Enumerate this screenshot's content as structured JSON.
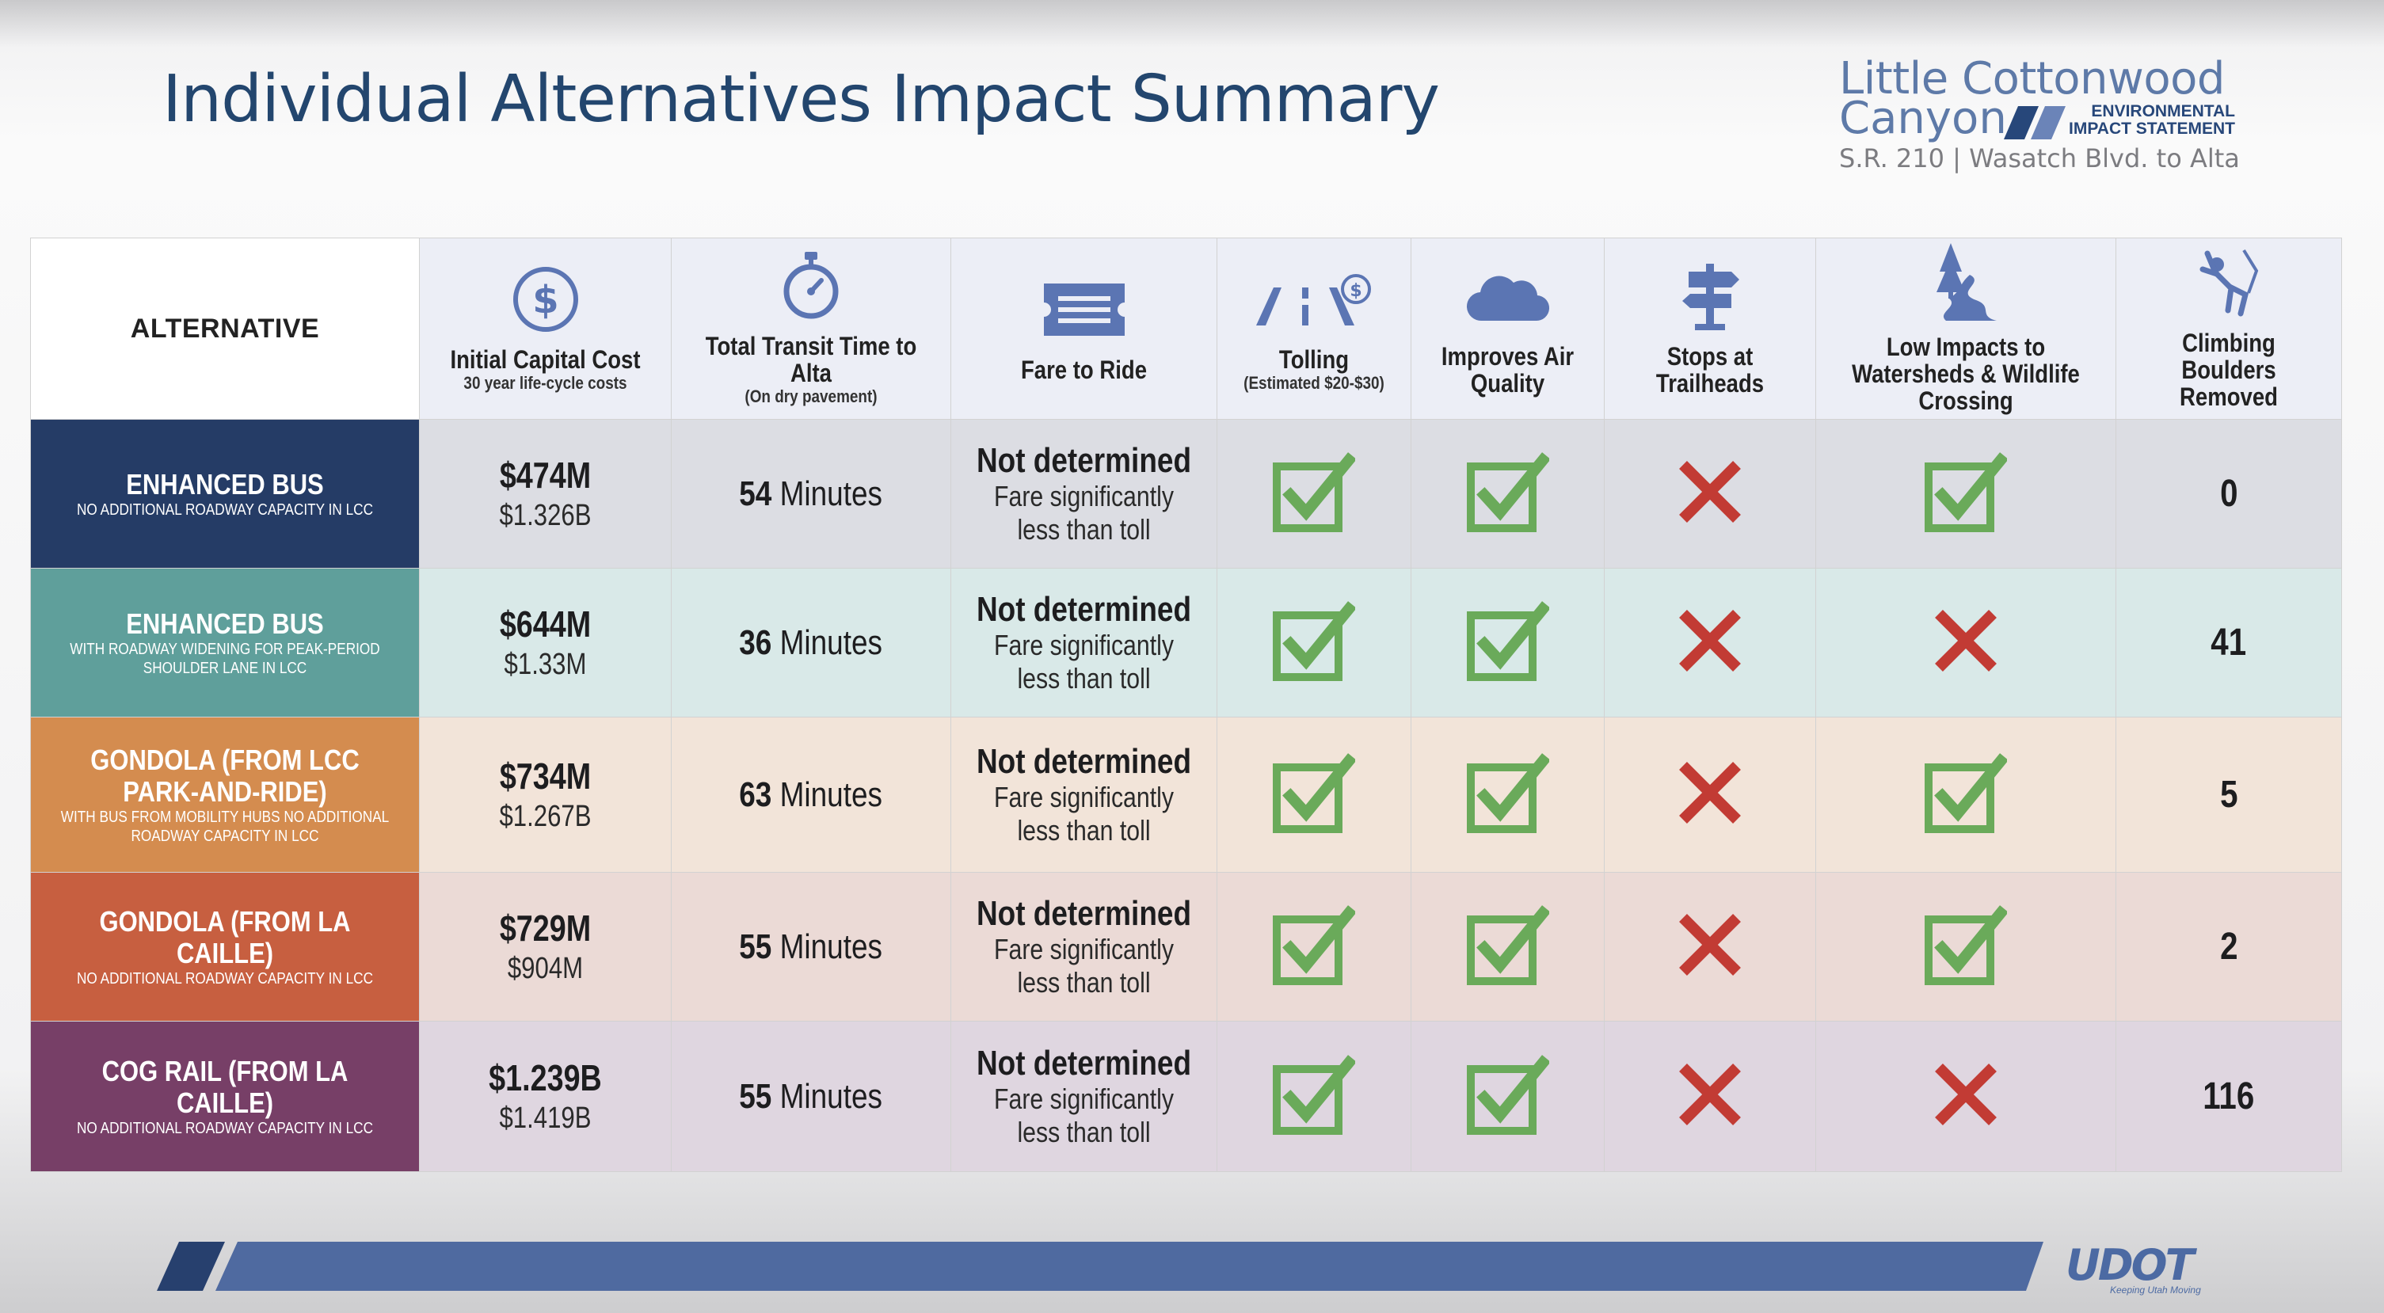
{
  "header": {
    "title": "Individual Alternatives Impact Summary",
    "logo": {
      "line1": "Little Cottonwood",
      "line2": "Canyon",
      "eis_line1": "ENVIRONMENTAL",
      "eis_line2": "IMPACT STATEMENT",
      "line3": "S.R. 210 | Wasatch Blvd. to Alta"
    }
  },
  "colors": {
    "title": "#23466e",
    "header_bg": "#eceef6",
    "icon_blue": "#5b75b3",
    "check_green": "#6aaa5a",
    "cross_red": "#c23b34",
    "band_blue": "#4f6aa0",
    "band_dark": "#27406e"
  },
  "table": {
    "alternative_header": "ALTERNATIVE",
    "columns": [
      {
        "title": "Initial Capital Cost",
        "subtitle": "30 year life-cycle costs",
        "icon": "dollar-icon"
      },
      {
        "title": "Total Transit Time to Alta",
        "subtitle": "(On dry pavement)",
        "icon": "stopwatch-icon"
      },
      {
        "title": "Fare to Ride",
        "subtitle": "",
        "icon": "ticket-icon"
      },
      {
        "title": "Tolling",
        "subtitle": "(Estimated $20-$30)",
        "icon": "toll-road-icon"
      },
      {
        "title": "Improves Air Quality",
        "subtitle": "",
        "icon": "cloud-icon"
      },
      {
        "title": "Stops at Trailheads",
        "subtitle": "",
        "icon": "trail-sign-icon"
      },
      {
        "title": "Low Impacts to Watersheds & Wildlife Crossing",
        "subtitle": "",
        "icon": "mountain-stream-icon"
      },
      {
        "title": "Climbing Boulders Removed",
        "subtitle": "",
        "icon": "climber-icon"
      }
    ],
    "minutes_label": "Minutes",
    "rows": [
      {
        "name": "ENHANCED BUS",
        "note": "NO ADDITIONAL ROADWAY CAPACITY IN LCC",
        "color": "#253c66",
        "cost": "$474M",
        "lifecycle": "$1.326B",
        "transit_min": "54",
        "fare_main": "Not determined",
        "fare_sub": "Fare significantly less than toll",
        "tolling": "check",
        "air": "check",
        "trailheads": "cross",
        "watershed": "check",
        "boulders": "0",
        "bg": "#dcdde3"
      },
      {
        "name": "ENHANCED BUS",
        "note": "WITH ROADWAY WIDENING FOR PEAK-PERIOD SHOULDER LANE IN LCC",
        "color": "#5f9f9b",
        "cost": "$644M",
        "lifecycle": "$1.33M",
        "transit_min": "36",
        "fare_main": "Not determined",
        "fare_sub": "Fare significantly less than toll",
        "tolling": "check",
        "air": "check",
        "trailheads": "cross",
        "watershed": "cross",
        "boulders": "41",
        "bg": "#d9e9e8"
      },
      {
        "name": "GONDOLA (FROM LCC PARK-AND-RIDE)",
        "note": "WITH BUS FROM MOBILITY HUBS NO ADDITIONAL ROADWAY CAPACITY IN LCC",
        "color": "#d48c4f",
        "cost": "$734M",
        "lifecycle": "$1.267B",
        "transit_min": "63",
        "fare_main": "Not determined",
        "fare_sub": "Fare significantly less than toll",
        "tolling": "check",
        "air": "check",
        "trailheads": "cross",
        "watershed": "check",
        "boulders": "5",
        "bg": "#f2e4d9"
      },
      {
        "name": "GONDOLA (FROM LA CAILLE)",
        "note": "NO ADDITIONAL ROADWAY CAPACITY IN LCC",
        "color": "#c75f40",
        "cost": "$729M",
        "lifecycle": "$904M",
        "transit_min": "55",
        "fare_main": "Not determined",
        "fare_sub": "Fare significantly less than toll",
        "tolling": "check",
        "air": "check",
        "trailheads": "cross",
        "watershed": "check",
        "boulders": "2",
        "bg": "#ebdad6"
      },
      {
        "name": "COG RAIL (FROM LA CAILLE)",
        "note": "NO ADDITIONAL ROADWAY CAPACITY IN LCC",
        "color": "#773f67",
        "cost": "$1.239B",
        "lifecycle": "$1.419B",
        "transit_min": "55",
        "fare_main": "Not determined",
        "fare_sub": "Fare significantly less than toll",
        "tolling": "check",
        "air": "check",
        "trailheads": "cross",
        "watershed": "cross",
        "boulders": "116",
        "bg": "#dfd6e0"
      }
    ]
  },
  "footer": {
    "udot_logo": "UDOT",
    "udot_tagline": "Keeping Utah Moving"
  }
}
